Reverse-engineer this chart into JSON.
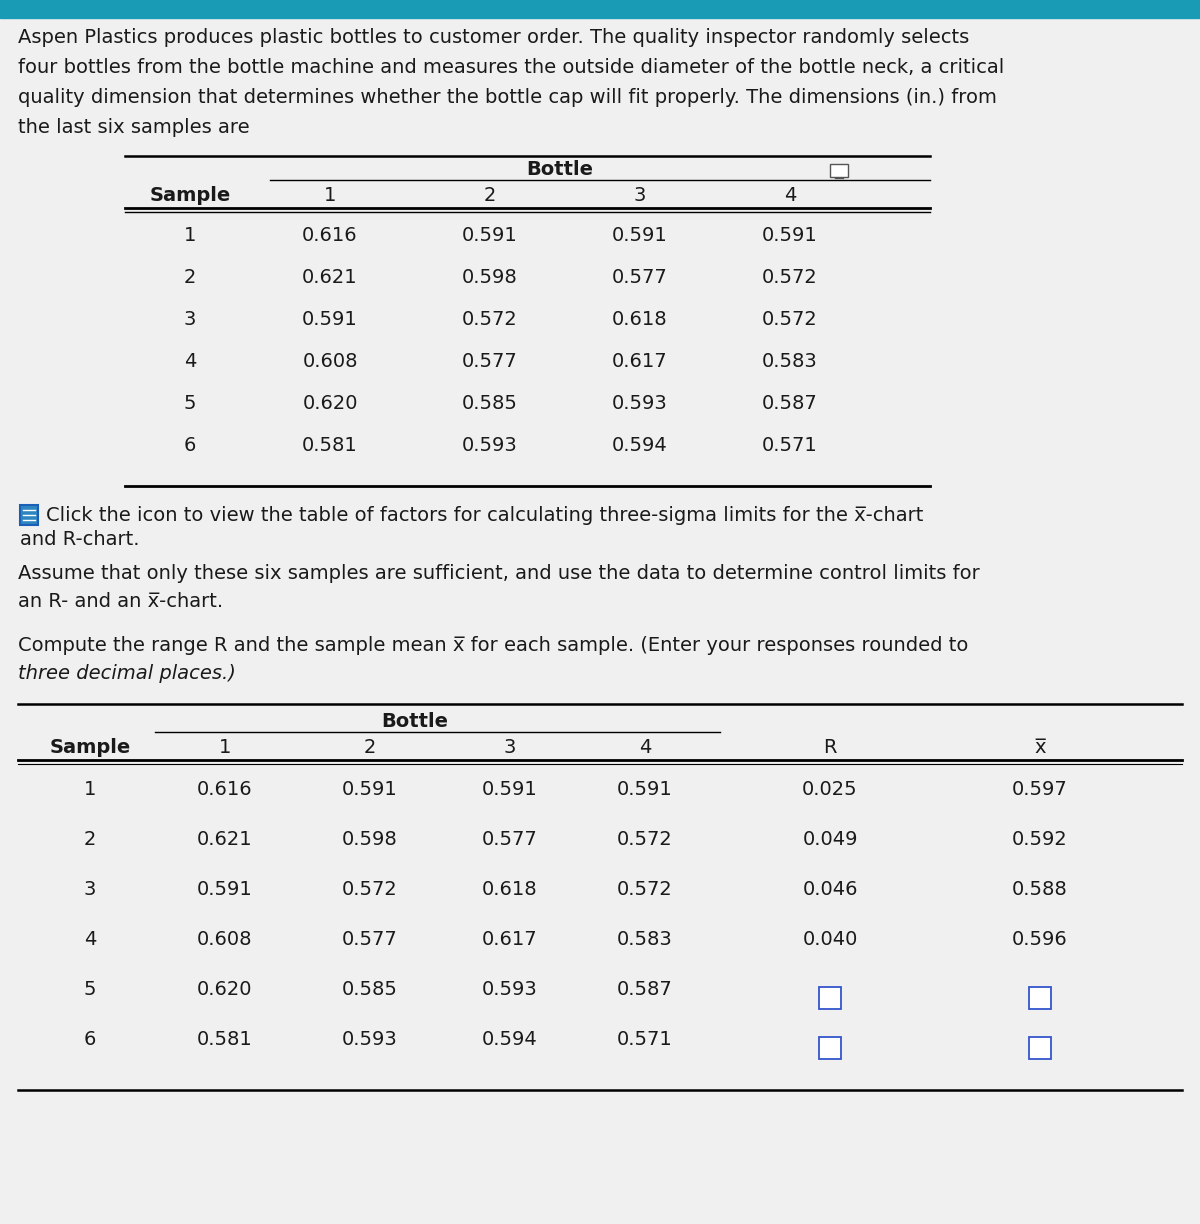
{
  "bg_color": "#dcdcdc",
  "top_bar_color": "#1a9bb5",
  "white_bg": "#f0f0f0",
  "intro_text_lines": [
    "Aspen Plastics produces plastic bottles to customer order. The quality inspector randomly selects",
    "four bottles from the bottle machine and measures the outside diameter of the bottle neck, a critical",
    "quality dimension that determines whether the bottle cap will fit properly. The dimensions (in.) from",
    "the last six samples are"
  ],
  "table1_col_headers": [
    "Sample",
    "1",
    "2",
    "3",
    "4"
  ],
  "table1_rows": [
    [
      1,
      0.616,
      0.591,
      0.591,
      0.591
    ],
    [
      2,
      0.621,
      0.598,
      0.577,
      0.572
    ],
    [
      3,
      0.591,
      0.572,
      0.618,
      0.572
    ],
    [
      4,
      0.608,
      0.577,
      0.617,
      0.583
    ],
    [
      5,
      0.62,
      0.585,
      0.593,
      0.587
    ],
    [
      6,
      0.581,
      0.593,
      0.594,
      0.571
    ]
  ],
  "click_text_line1": "Click the icon to view the table of factors for calculating three-sigma limits for the x̅-chart",
  "click_text_line2": "and R-chart.",
  "assume_text_lines": [
    "Assume that only these six samples are sufficient, and use the data to determine control limits for",
    "an R- and an x̅-chart."
  ],
  "compute_text_line1": "Compute the range R and the sample mean x̅ for each sample. (Enter your responses rounded to",
  "compute_text_line2": "three decimal places.)",
  "table2_col_headers": [
    "Sample",
    "1",
    "2",
    "3",
    "4",
    "R",
    "x̅"
  ],
  "table2_rows": [
    [
      1,
      "0.616",
      "0.591",
      "0.591",
      "0.591",
      "0.025",
      "0.597"
    ],
    [
      2,
      "0.621",
      "0.598",
      "0.577",
      "0.572",
      "0.049",
      "0.592"
    ],
    [
      3,
      "0.591",
      "0.572",
      "0.618",
      "0.572",
      "0.046",
      "0.588"
    ],
    [
      4,
      "0.608",
      "0.577",
      "0.617",
      "0.583",
      "0.040",
      "0.596"
    ],
    [
      5,
      "0.620",
      "0.585",
      "0.593",
      "0.587",
      "",
      ""
    ],
    [
      6,
      "0.581",
      "0.593",
      "0.594",
      "0.571",
      "",
      ""
    ]
  ]
}
